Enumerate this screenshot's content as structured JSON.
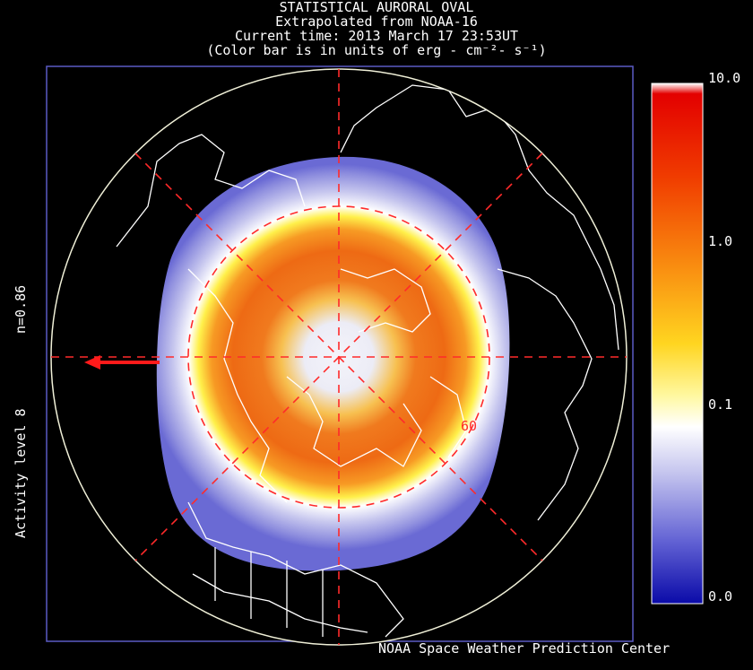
{
  "title_lines": [
    "STATISTICAL AURORAL OVAL",
    "Extrapolated from NOAA-16",
    "Current time: 2013 March 17 23:53UT",
    "(Color bar is in units of erg - cm⁻²- s⁻¹)"
  ],
  "side_labels": {
    "n_value": "n=0.86",
    "activity": "Activity level 8"
  },
  "colorbar": {
    "ticks": [
      "10.0",
      "1.0",
      "0.1",
      "0.0"
    ],
    "colors": [
      "#ffffff",
      "#f2f2f9",
      "#d0d0ef",
      "#a0a0e4",
      "#5050cf",
      "#0c0ca0"
    ]
  },
  "latitude_label": "60",
  "credit": "NOAA Space Weather Prediction Center",
  "colors": {
    "background": "#000000",
    "grid": "#ff2a2a",
    "coastline": "#ffffff",
    "frame": "#5b5bc4"
  },
  "icons": {
    "arrow": "sun-direction-arrow-icon"
  }
}
